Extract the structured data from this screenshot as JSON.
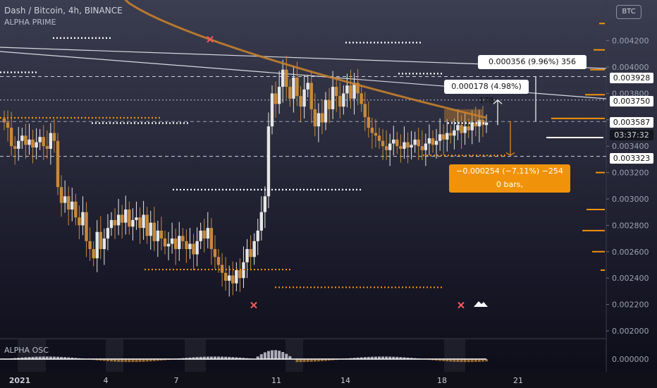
{
  "header": {
    "symbol": "Dash / Bitcoin, 4h, BINANCE",
    "indicator": "ALPHA PRIME",
    "oscillator": "ALPHA OSC",
    "currency_button": "BTC"
  },
  "price_tags": [
    {
      "label": "0.003928",
      "style": "white"
    },
    {
      "label": "0.003750",
      "style": "white"
    },
    {
      "label": "0.003587",
      "style": "white"
    },
    {
      "label": "03:37:32",
      "style": "dark"
    },
    {
      "label": "0.003323",
      "style": "white"
    }
  ],
  "measurements": {
    "upper": "0.000356 (9.96%) 356",
    "middle": "0.000178 (4.98%) 178",
    "lower_line1": "−0.000254 (−7.11%) −254",
    "lower_line2": "0 bars,"
  },
  "chart_data": {
    "type": "candlestick",
    "timeframe": "4h",
    "x_ticks": [
      "2021",
      "4",
      "7",
      "11",
      "14",
      "18",
      "21"
    ],
    "y_ticks": [
      "0.004200",
      "0.004000",
      "0.003800",
      "0.003600",
      "0.003400",
      "0.003200",
      "0.003000",
      "0.002800",
      "0.002600",
      "0.002400",
      "0.002200",
      "0.002000"
    ],
    "osc_ticks": [
      "0.000000"
    ],
    "ylim": [
      0.00192,
      0.0045
    ],
    "colors": {
      "up": "#e6e6e6",
      "down": "#c88a3a",
      "trend": "#c47f2c",
      "dots_orange": "#f0930a",
      "dots_white": "#ffffff"
    },
    "closes": [
      0.00358,
      0.00354,
      0.0034,
      0.00338,
      0.00344,
      0.00348,
      0.00341,
      0.00345,
      0.00339,
      0.00343,
      0.00347,
      0.0034,
      0.00338,
      0.0035,
      0.00344,
      0.00309,
      0.00297,
      0.00302,
      0.00292,
      0.00298,
      0.00286,
      0.0028,
      0.0029,
      0.00268,
      0.00262,
      0.00255,
      0.00275,
      0.00262,
      0.0027,
      0.00278,
      0.00284,
      0.0028,
      0.00288,
      0.00282,
      0.00292,
      0.00279,
      0.00284,
      0.00286,
      0.00278,
      0.00288,
      0.00272,
      0.00282,
      0.00268,
      0.00276,
      0.0027,
      0.00264,
      0.00266,
      0.0027,
      0.00262,
      0.00272,
      0.00268,
      0.00262,
      0.00266,
      0.00258,
      0.00268,
      0.00276,
      0.0027,
      0.00278,
      0.00262,
      0.00256,
      0.0025,
      0.00244,
      0.00238,
      0.00242,
      0.00236,
      0.00246,
      0.0024,
      0.00252,
      0.00262,
      0.00256,
      0.00268,
      0.00276,
      0.0029,
      0.00302,
      0.00355,
      0.0038,
      0.00372,
      0.00385,
      0.00398,
      0.00385,
      0.00376,
      0.00392,
      0.00378,
      0.0037,
      0.00383,
      0.00388,
      0.00368,
      0.00355,
      0.00365,
      0.00358,
      0.00375,
      0.00368,
      0.00385,
      0.00378,
      0.0037,
      0.0038,
      0.00386,
      0.00376,
      0.00388,
      0.0038,
      0.00372,
      0.00362,
      0.00354,
      0.0035,
      0.00348,
      0.00344,
      0.0034,
      0.00337,
      0.00342,
      0.00345,
      0.0034,
      0.00338,
      0.00343,
      0.00339,
      0.00341,
      0.00345,
      0.0034,
      0.00337,
      0.00342,
      0.00346,
      0.00341,
      0.00344,
      0.00349,
      0.00345,
      0.0035,
      0.00348,
      0.00352,
      0.00356,
      0.0035,
      0.00355,
      0.00352,
      0.00358,
      0.00355,
      0.0036,
      0.00356,
      0.00358
    ]
  }
}
